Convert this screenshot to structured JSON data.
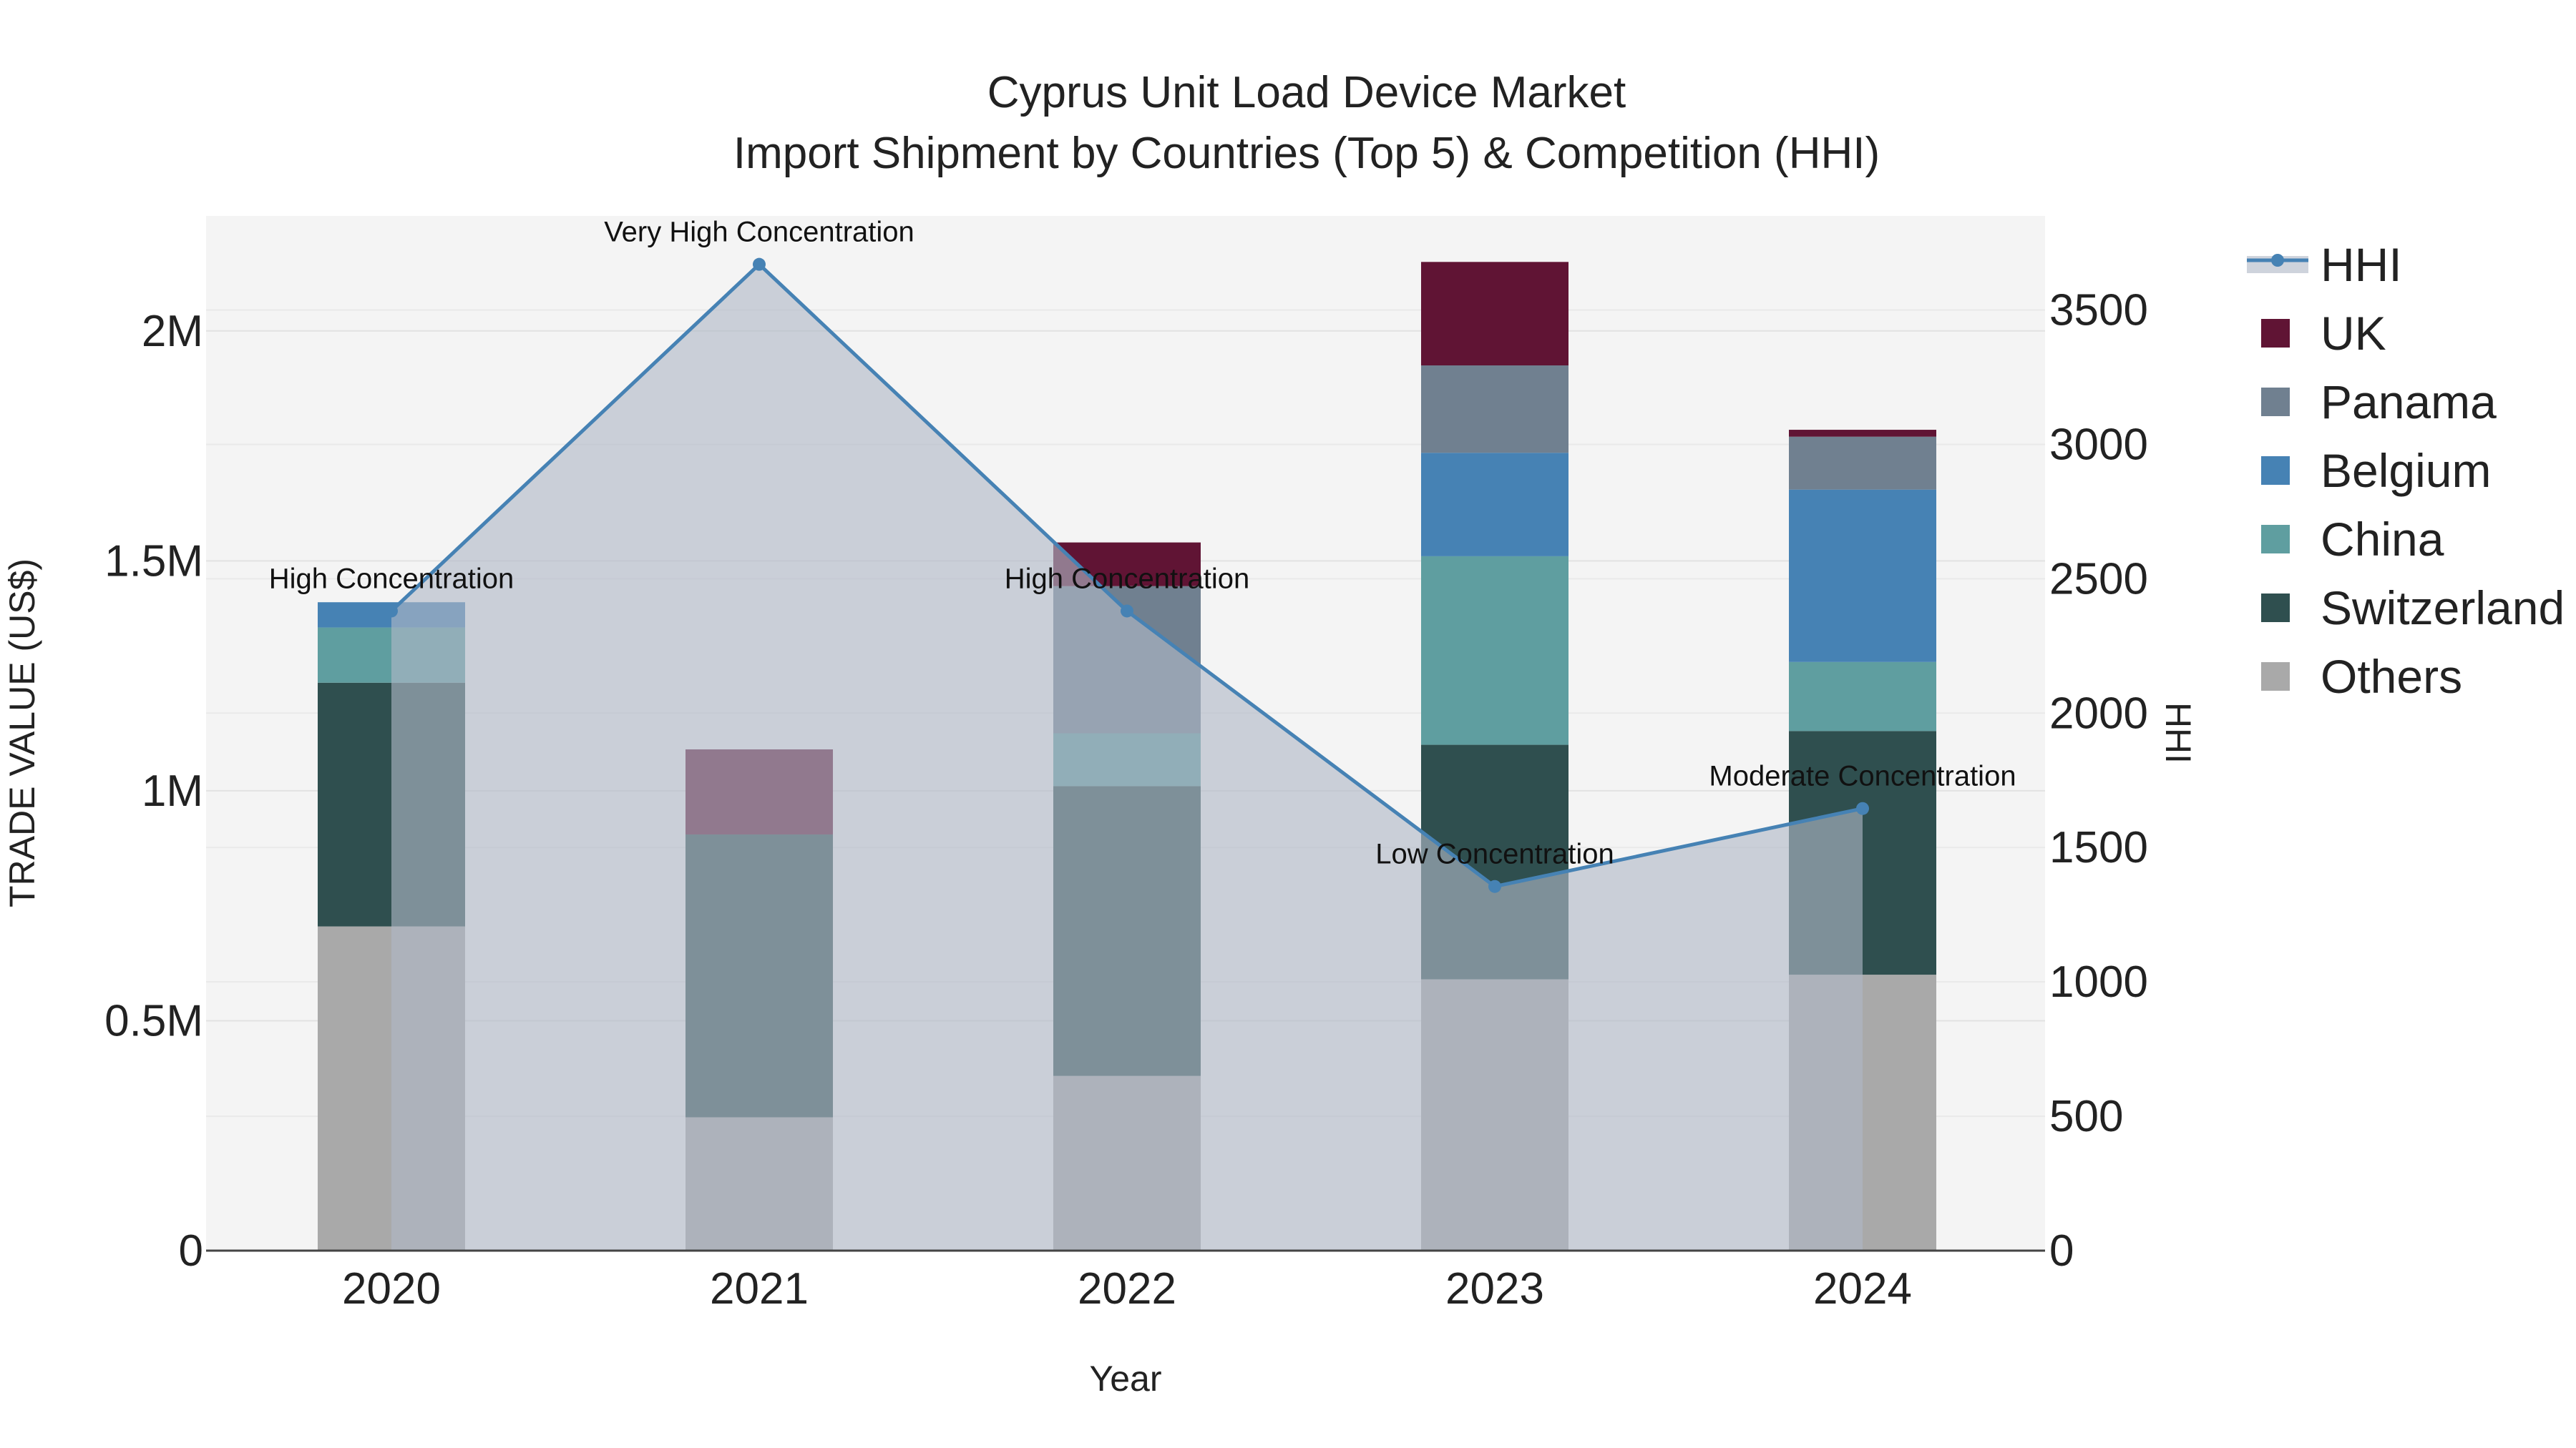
{
  "chart_data": {
    "type": "bar",
    "subtype": "stacked-bar-with-line",
    "title": "Cyprus Unit Load Device Market",
    "subtitle": "Import Shipment by Countries (Top 5) & Competition (HHI)",
    "xlabel": "Year",
    "ylabel": "TRADE VALUE (US$)",
    "y2label": "HHI",
    "categories": [
      "2020",
      "2021",
      "2022",
      "2023",
      "2024"
    ],
    "ylim": [
      0,
      2250000
    ],
    "y2lim": [
      0,
      3850
    ],
    "y_ticks": [
      0,
      500000,
      1000000,
      1500000,
      2000000
    ],
    "y_tick_labels": [
      "0",
      "0.5M",
      "1M",
      "1.5M",
      "2M"
    ],
    "y2_ticks": [
      0,
      500,
      1000,
      1500,
      2000,
      2500,
      3000,
      3500
    ],
    "y2_tick_labels": [
      "0",
      "500",
      "1000",
      "1500",
      "2000",
      "2500",
      "3000",
      "3500"
    ],
    "series": [
      {
        "name": "Others",
        "color": "#a9a9a9",
        "values": [
          705000,
          290000,
          380000,
          590000,
          600000
        ]
      },
      {
        "name": "Switzerland",
        "color": "#2f4f4f",
        "values": [
          530000,
          615000,
          630000,
          510000,
          530000
        ]
      },
      {
        "name": "China",
        "color": "#5f9ea0",
        "values": [
          120000,
          0,
          115000,
          410000,
          150000
        ]
      },
      {
        "name": "Belgium",
        "color": "#4682b4",
        "values": [
          55000,
          0,
          0,
          225000,
          375000
        ]
      },
      {
        "name": "Panama",
        "color": "#708090",
        "values": [
          0,
          0,
          320000,
          190000,
          115000
        ]
      },
      {
        "name": "UK",
        "color": "#601434",
        "values": [
          0,
          185000,
          95000,
          225000,
          15000
        ]
      }
    ],
    "line": {
      "name": "HHI",
      "color": "#4682b4",
      "values": [
        2380,
        3670,
        2380,
        1355,
        1645
      ],
      "annotations": [
        "High Concentration",
        "Very High Concentration",
        "High Concentration",
        "Low Concentration",
        "Moderate Concentration"
      ]
    },
    "legend_order": [
      "HHI",
      "UK",
      "Panama",
      "Belgium",
      "China",
      "Switzerland",
      "Others"
    ],
    "legend_position": "right",
    "grid": true
  }
}
